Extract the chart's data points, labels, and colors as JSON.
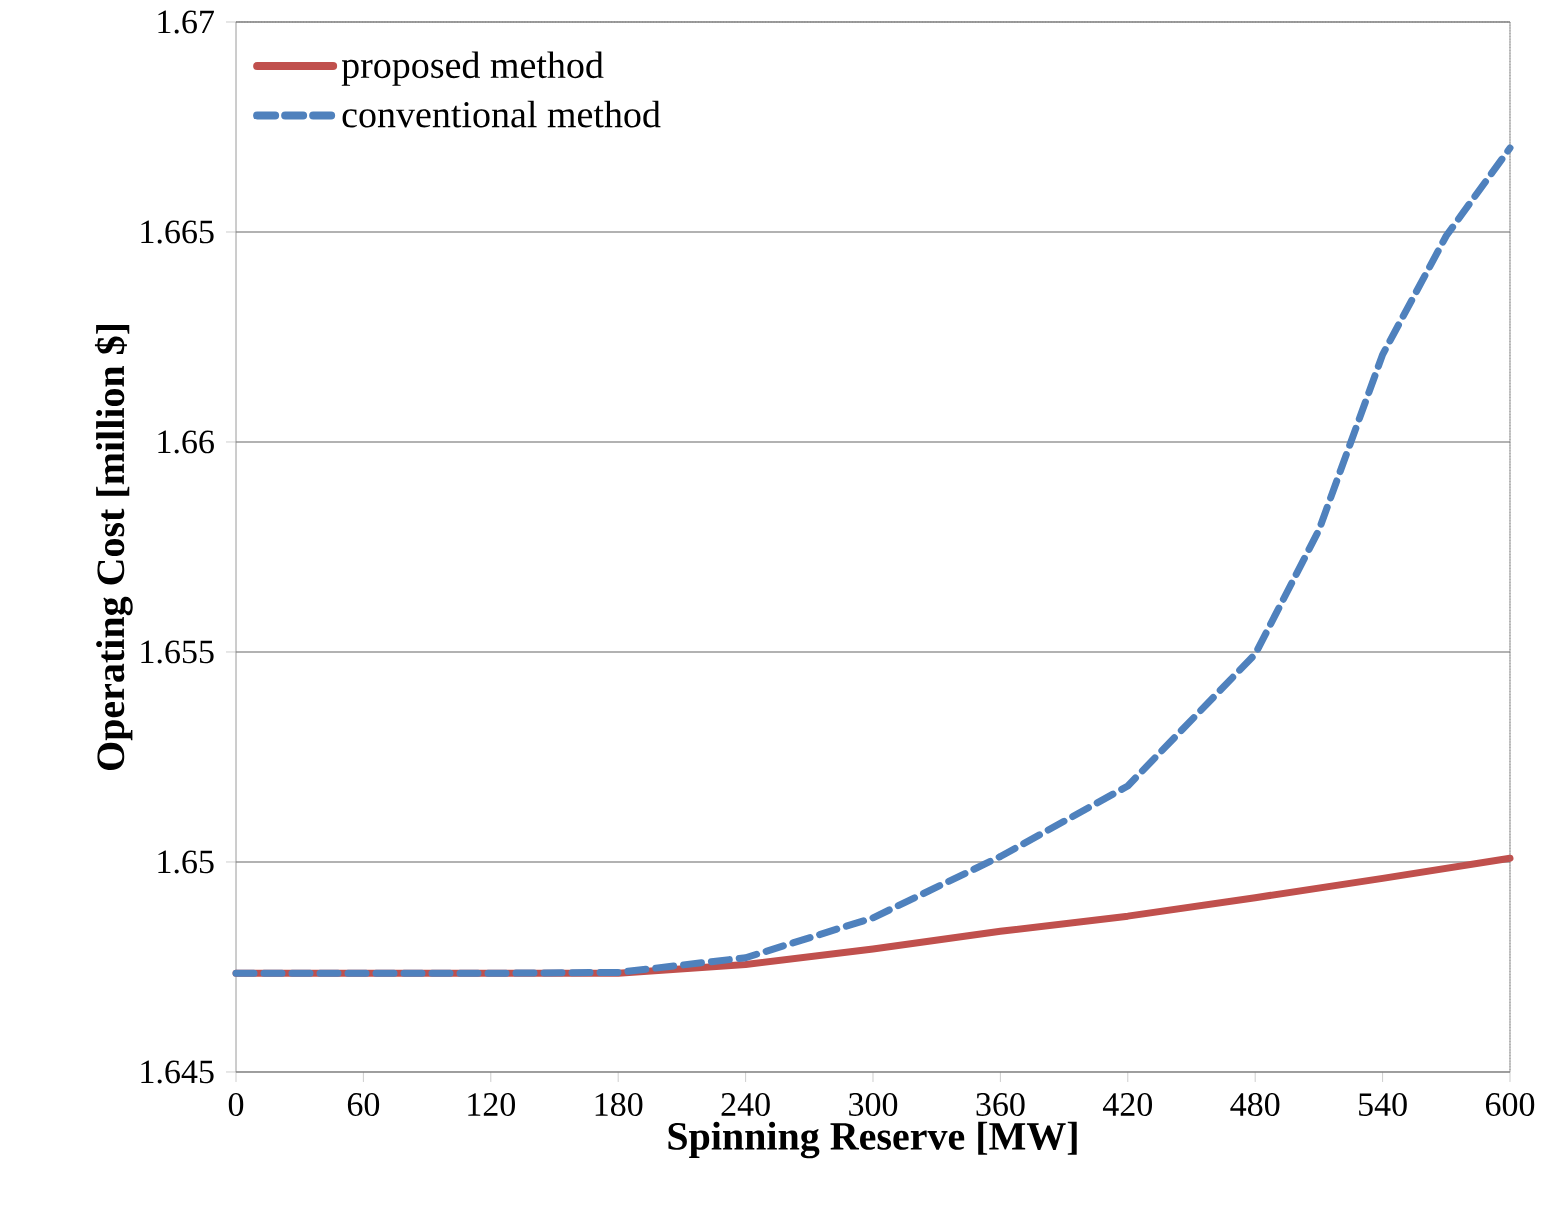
{
  "chart_data": {
    "type": "line",
    "xlabel": "Spinning Reserve [MW]",
    "ylabel": "Operating Cost [million $]",
    "xlim": [
      0,
      600
    ],
    "xticks": [
      0,
      60,
      120,
      180,
      240,
      300,
      360,
      420,
      480,
      540,
      600
    ],
    "ylim": [
      1.645,
      1.67
    ],
    "yticks": [
      1.645,
      1.65,
      1.655,
      1.66,
      1.665,
      1.67
    ],
    "grid": "y",
    "legend": "top left",
    "series": [
      {
        "name": "proposed method",
        "color": "#c0504d",
        "line_style": "solid",
        "x": [
          0,
          60,
          120,
          180,
          240,
          300,
          360,
          420,
          480,
          540,
          600
        ],
        "values": [
          1.64735,
          1.64735,
          1.64735,
          1.64735,
          1.64756,
          1.64793,
          1.64835,
          1.64871,
          1.64915,
          1.64961,
          1.65009
        ]
      },
      {
        "name": "conventional method",
        "color": "#4f81bd",
        "line_style": "dashed",
        "x": [
          0,
          60,
          120,
          180,
          240,
          300,
          360,
          420,
          480,
          510,
          540,
          570,
          600
        ],
        "values": [
          1.64735,
          1.64735,
          1.64735,
          1.64737,
          1.64772,
          1.64867,
          1.65013,
          1.65181,
          1.65495,
          1.6579,
          1.66208,
          1.66491,
          1.667
        ]
      }
    ]
  }
}
